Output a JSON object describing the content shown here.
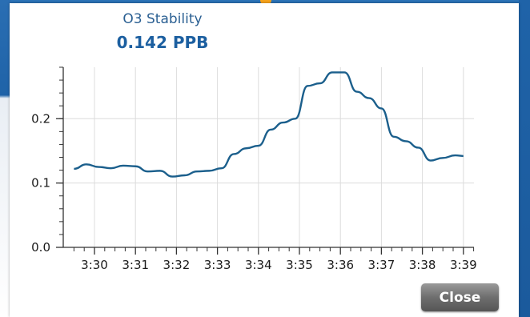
{
  "dialog": {
    "title": "O3 Stability",
    "value": "0.142 PPB",
    "close_label": "Close"
  },
  "colors": {
    "line": "#1b5f8c",
    "title_text": "#2a5f92",
    "value_text": "#1c5fa0",
    "background_accent": "#1f63a8",
    "indicator": "#f6a21a"
  },
  "chart_data": {
    "type": "line",
    "title": "O3 Stability",
    "xlabel": "",
    "ylabel": "",
    "x_tick_labels": [
      "3:30",
      "3:31",
      "3:32",
      "3:33",
      "3:34",
      "3:35",
      "3:36",
      "3:37",
      "3:38",
      "3:39"
    ],
    "y_tick_labels": [
      "0.0",
      "0.1",
      "0.2"
    ],
    "xlim": [
      "3:29:30",
      "3:39:00"
    ],
    "ylim": [
      0,
      0.28
    ],
    "grid": true,
    "series": [
      {
        "x": [
          "3:29:30",
          "3:29:48",
          "3:30:06",
          "3:30:24",
          "3:30:42",
          "3:31:00",
          "3:31:18",
          "3:31:36",
          "3:31:54",
          "3:32:12",
          "3:32:30",
          "3:32:48",
          "3:33:06",
          "3:33:24",
          "3:33:42",
          "3:34:00",
          "3:34:18",
          "3:34:36",
          "3:34:54",
          "3:35:12",
          "3:35:30",
          "3:35:48",
          "3:36:06",
          "3:36:24",
          "3:36:42",
          "3:37:00",
          "3:37:18",
          "3:37:36",
          "3:37:54",
          "3:38:12",
          "3:38:30",
          "3:38:48",
          "3:39:00"
        ],
        "values": [
          0.122,
          0.129,
          0.125,
          0.123,
          0.127,
          0.126,
          0.118,
          0.119,
          0.11,
          0.112,
          0.118,
          0.119,
          0.123,
          0.145,
          0.154,
          0.158,
          0.183,
          0.194,
          0.2,
          0.251,
          0.255,
          0.272,
          0.272,
          0.242,
          0.232,
          0.216,
          0.172,
          0.165,
          0.155,
          0.135,
          0.139,
          0.143,
          0.142
        ]
      }
    ]
  }
}
